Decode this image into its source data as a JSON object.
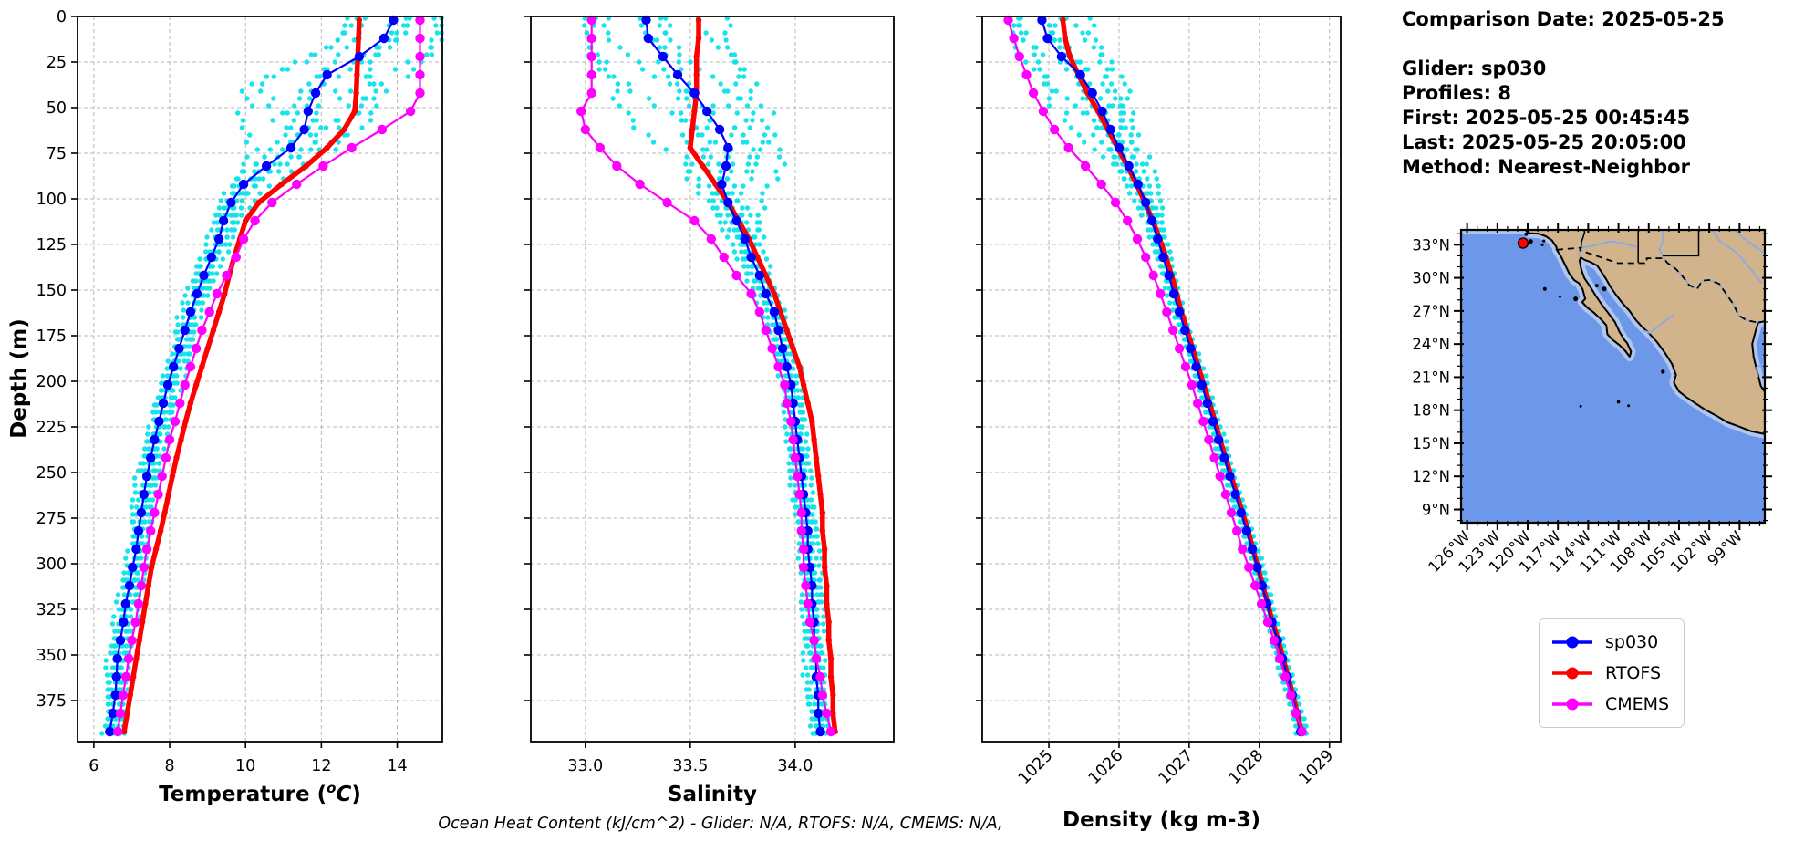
{
  "info_panel": {
    "lines": [
      "Comparison Date: 2025-05-25",
      "",
      "Glider: sp030",
      "Profiles: 8",
      "First: 2025-05-25 00:45:45",
      "Last: 2025-05-25 20:05:00",
      "Method: Nearest-Neighbor"
    ]
  },
  "footer_note": "Ocean Heat Content (kJ/cm^2) - Glider: N/A,  RTOFS: N/A,  CMEMS: N/A,",
  "ylabel": "Depth (m)",
  "legend": {
    "items": [
      {
        "label": "sp030",
        "color": "#0000ff"
      },
      {
        "label": "RTOFS",
        "color": "#ff0000"
      },
      {
        "label": "CMEMS",
        "color": "#ff00ff"
      }
    ]
  },
  "colors": {
    "glider_mean": "#0000ff",
    "rtofs": "#ff0000",
    "cmems": "#ff00ff",
    "glider_scatter": "#0de3ea",
    "grid": "#b8b8b8",
    "spine": "#000000"
  },
  "chart_data": [
    {
      "type": "line",
      "role": "depth-profile",
      "xlabel": {
        "pre": "Temperature (",
        "sup": "o",
        "it": "C",
        "post": ")"
      },
      "ylabel": "Depth (m)",
      "xlim": [
        5.57,
        15.19
      ],
      "xticks": [
        6,
        8,
        10,
        12,
        14
      ],
      "xtick_labels": [
        "6",
        "8",
        "10",
        "12",
        "14"
      ],
      "ylim": [
        0,
        397.5
      ],
      "yticks": [
        0,
        25,
        50,
        75,
        100,
        125,
        150,
        175,
        200,
        225,
        250,
        275,
        300,
        325,
        350,
        375
      ],
      "show_ytick_labels": true,
      "rotate_xtick_labels": false,
      "grid": true,
      "depths": [
        2,
        12,
        22,
        32,
        42,
        52,
        62,
        72,
        82,
        92,
        102,
        112,
        122,
        132,
        142,
        152,
        162,
        172,
        182,
        192,
        202,
        212,
        222,
        232,
        242,
        252,
        262,
        272,
        282,
        292,
        302,
        312,
        322,
        332,
        342,
        352,
        362,
        372,
        382,
        392
      ],
      "series": [
        {
          "name": "RTOFS",
          "color": "#ff0000",
          "z": 1,
          "line_width": 5.5,
          "marker_r": 3.2,
          "values": [
            13.0,
            12.98,
            12.96,
            12.94,
            12.92,
            12.88,
            12.6,
            12.15,
            11.6,
            10.95,
            10.35,
            10.0,
            9.85,
            9.7,
            9.57,
            9.45,
            9.3,
            9.15,
            9.0,
            8.85,
            8.7,
            8.55,
            8.42,
            8.3,
            8.18,
            8.07,
            7.97,
            7.87,
            7.76,
            7.64,
            7.52,
            7.44,
            7.36,
            7.28,
            7.2,
            7.12,
            7.04,
            6.96,
            6.88,
            6.8
          ]
        },
        {
          "name": "sp030",
          "color": "#0000ff",
          "z": 2,
          "line_width": 2.2,
          "marker_r": 5.2,
          "values": [
            13.9,
            13.65,
            13.0,
            12.15,
            11.85,
            11.65,
            11.55,
            11.2,
            10.55,
            9.95,
            9.62,
            9.42,
            9.3,
            9.1,
            8.9,
            8.72,
            8.55,
            8.4,
            8.25,
            8.1,
            7.95,
            7.83,
            7.72,
            7.6,
            7.5,
            7.4,
            7.32,
            7.25,
            7.18,
            7.12,
            7.02,
            6.94,
            6.84,
            6.78,
            6.7,
            6.62,
            6.6,
            6.57,
            6.5,
            6.42
          ]
        },
        {
          "name": "CMEMS",
          "color": "#ff00ff",
          "z": 3,
          "line_width": 2.2,
          "marker_r": 5.2,
          "values": [
            14.6,
            14.6,
            14.6,
            14.6,
            14.6,
            14.35,
            13.6,
            12.8,
            12.05,
            11.35,
            10.7,
            10.25,
            9.95,
            9.75,
            9.5,
            9.25,
            9.05,
            8.85,
            8.7,
            8.55,
            8.4,
            8.27,
            8.14,
            8.0,
            7.9,
            7.8,
            7.7,
            7.6,
            7.5,
            7.4,
            7.32,
            7.25,
            7.18,
            7.1,
            7.0,
            6.92,
            6.85,
            6.77,
            6.7,
            6.63
          ]
        }
      ],
      "scatter": {
        "name": "glider raw profiles",
        "color": "#0de3ea",
        "profiles": 8,
        "step": 4,
        "base": 0.28,
        "bump": 1.0,
        "center": 48,
        "width": 30,
        "surface": 1.25,
        "skew": 0.18
      }
    },
    {
      "type": "line",
      "role": "depth-profile",
      "xlabel": {
        "pre": "Salinity"
      },
      "ylabel": "Depth (m)",
      "xlim": [
        32.74,
        34.47
      ],
      "xticks": [
        33.0,
        33.5,
        34.0
      ],
      "xtick_labels": [
        "33.0",
        "33.5",
        "34.0"
      ],
      "ylim": [
        0,
        397.5
      ],
      "yticks": [
        0,
        25,
        50,
        75,
        100,
        125,
        150,
        175,
        200,
        225,
        250,
        275,
        300,
        325,
        350,
        375
      ],
      "show_ytick_labels": false,
      "rotate_xtick_labels": false,
      "grid": true,
      "depths": [
        2,
        12,
        22,
        32,
        42,
        52,
        62,
        72,
        82,
        92,
        102,
        112,
        122,
        132,
        142,
        152,
        162,
        172,
        182,
        192,
        202,
        212,
        222,
        232,
        242,
        252,
        262,
        272,
        282,
        292,
        302,
        312,
        322,
        332,
        342,
        352,
        362,
        372,
        382,
        392
      ],
      "series": [
        {
          "name": "RTOFS",
          "color": "#ff0000",
          "z": 1,
          "line_width": 5.5,
          "marker_r": 3.2,
          "values": [
            33.54,
            33.54,
            33.53,
            33.53,
            33.53,
            33.52,
            33.51,
            33.5,
            33.56,
            33.62,
            33.68,
            33.73,
            33.78,
            33.82,
            33.86,
            33.9,
            33.93,
            33.96,
            33.99,
            34.02,
            34.04,
            34.06,
            34.08,
            34.09,
            34.1,
            34.11,
            34.12,
            34.13,
            34.13,
            34.14,
            34.14,
            34.15,
            34.15,
            34.16,
            34.16,
            34.17,
            34.17,
            34.18,
            34.18,
            34.19
          ]
        },
        {
          "name": "sp030",
          "color": "#0000ff",
          "z": 2,
          "line_width": 2.2,
          "marker_r": 5.2,
          "values": [
            33.29,
            33.3,
            33.37,
            33.44,
            33.52,
            33.58,
            33.64,
            33.68,
            33.67,
            33.65,
            33.68,
            33.72,
            33.76,
            33.79,
            33.83,
            33.86,
            33.9,
            33.92,
            33.94,
            33.96,
            33.98,
            33.99,
            34.0,
            34.01,
            34.02,
            34.03,
            34.04,
            34.05,
            34.06,
            34.06,
            34.07,
            34.08,
            34.08,
            34.09,
            34.09,
            34.1,
            34.1,
            34.11,
            34.11,
            34.12
          ]
        },
        {
          "name": "CMEMS",
          "color": "#ff00ff",
          "z": 3,
          "line_width": 2.2,
          "marker_r": 5.2,
          "values": [
            33.03,
            33.03,
            33.03,
            33.03,
            33.03,
            32.98,
            33.0,
            33.07,
            33.15,
            33.26,
            33.39,
            33.52,
            33.6,
            33.66,
            33.72,
            33.79,
            33.83,
            33.86,
            33.89,
            33.92,
            33.95,
            33.96,
            33.98,
            33.99,
            34.0,
            34.01,
            34.02,
            34.03,
            34.03,
            34.04,
            34.04,
            34.05,
            34.06,
            34.07,
            34.09,
            34.1,
            34.12,
            34.13,
            34.15,
            34.17
          ]
        }
      ],
      "scatter": {
        "name": "glider raw profiles",
        "color": "#0de3ea",
        "profiles": 8,
        "step": 4,
        "base": 0.05,
        "bump": 0.16,
        "center": 60,
        "width": 45,
        "surface": 0.3,
        "skew": 0.0
      }
    },
    {
      "type": "line",
      "role": "depth-profile",
      "xlabel": {
        "pre": "Density (kg m-3)"
      },
      "ylabel": "Depth (m)",
      "xlim": [
        1024.05,
        1029.16
      ],
      "xticks": [
        1025,
        1026,
        1027,
        1028,
        1029
      ],
      "xtick_labels": [
        "1025",
        "1026",
        "1027",
        "1028",
        "1029"
      ],
      "ylim": [
        0,
        397.5
      ],
      "yticks": [
        0,
        25,
        50,
        75,
        100,
        125,
        150,
        175,
        200,
        225,
        250,
        275,
        300,
        325,
        350,
        375
      ],
      "show_ytick_labels": false,
      "rotate_xtick_labels": true,
      "grid": true,
      "depths": [
        2,
        12,
        22,
        32,
        42,
        52,
        62,
        72,
        82,
        92,
        102,
        112,
        122,
        132,
        142,
        152,
        162,
        172,
        182,
        192,
        202,
        212,
        222,
        232,
        242,
        252,
        262,
        272,
        282,
        292,
        302,
        312,
        322,
        332,
        342,
        352,
        362,
        372,
        382,
        392
      ],
      "series": [
        {
          "name": "RTOFS",
          "color": "#ff0000",
          "z": 1,
          "line_width": 5.5,
          "marker_r": 3.2,
          "values": [
            1025.2,
            1025.23,
            1025.3,
            1025.42,
            1025.55,
            1025.7,
            1025.84,
            1025.98,
            1026.12,
            1026.25,
            1026.37,
            1026.48,
            1026.58,
            1026.67,
            1026.75,
            1026.82,
            1026.89,
            1026.97,
            1027.05,
            1027.13,
            1027.21,
            1027.29,
            1027.37,
            1027.44,
            1027.52,
            1027.6,
            1027.68,
            1027.76,
            1027.84,
            1027.91,
            1027.98,
            1028.05,
            1028.12,
            1028.19,
            1028.27,
            1028.34,
            1028.41,
            1028.48,
            1028.54,
            1028.6
          ]
        },
        {
          "name": "sp030",
          "color": "#0000ff",
          "z": 2,
          "line_width": 2.2,
          "marker_r": 5.2,
          "values": [
            1024.9,
            1024.98,
            1025.18,
            1025.45,
            1025.62,
            1025.76,
            1025.88,
            1026.0,
            1026.14,
            1026.27,
            1026.38,
            1026.47,
            1026.55,
            1026.63,
            1026.71,
            1026.78,
            1026.86,
            1026.94,
            1027.02,
            1027.1,
            1027.18,
            1027.26,
            1027.34,
            1027.42,
            1027.5,
            1027.58,
            1027.66,
            1027.74,
            1027.82,
            1027.9,
            1027.97,
            1028.04,
            1028.11,
            1028.18,
            1028.26,
            1028.33,
            1028.4,
            1028.47,
            1028.53,
            1028.59
          ]
        },
        {
          "name": "CMEMS",
          "color": "#ff00ff",
          "z": 3,
          "line_width": 2.2,
          "marker_r": 5.2,
          "values": [
            1024.42,
            1024.5,
            1024.58,
            1024.68,
            1024.78,
            1024.92,
            1025.08,
            1025.28,
            1025.52,
            1025.75,
            1025.95,
            1026.12,
            1026.26,
            1026.38,
            1026.49,
            1026.59,
            1026.68,
            1026.77,
            1026.86,
            1026.95,
            1027.04,
            1027.12,
            1027.2,
            1027.28,
            1027.36,
            1027.44,
            1027.52,
            1027.6,
            1027.68,
            1027.76,
            1027.85,
            1027.94,
            1028.03,
            1028.12,
            1028.21,
            1028.29,
            1028.37,
            1028.45,
            1028.52,
            1028.61
          ]
        }
      ],
      "scatter": {
        "name": "glider raw profiles",
        "color": "#0de3ea",
        "profiles": 8,
        "step": 4,
        "base": 0.08,
        "bump": 0.3,
        "center": 35,
        "width": 55,
        "surface": 0.38,
        "skew": 0.05
      }
    }
  ],
  "map": {
    "lat_tick_labels": [
      "33°N",
      "30°N",
      "27°N",
      "24°N",
      "21°N",
      "18°N",
      "15°N",
      "12°N",
      "9°N"
    ],
    "lat_tick_values": [
      33,
      30,
      27,
      24,
      21,
      18,
      15,
      12,
      9
    ],
    "lon_tick_labels": [
      "126°W",
      "123°W",
      "120°W",
      "117°W",
      "114°W",
      "111°W",
      "108°W",
      "105°W",
      "102°W",
      "99°W"
    ],
    "lon_tick_values": [
      -126,
      -123,
      -120,
      -117,
      -114,
      -111,
      -108,
      -105,
      -102,
      -99
    ],
    "extent": {
      "lon_min": -126.6,
      "lon_max": -96.5,
      "lat_min": 7.8,
      "lat_max": 34.35
    },
    "ocean_color": "#6d97e8",
    "land_color": "#d2b48c",
    "shelf_color": "#b0c6ec",
    "river_color": "#85abe3",
    "marker": {
      "lon": -120.45,
      "lat": 33.15,
      "color": "#ff0000"
    }
  }
}
